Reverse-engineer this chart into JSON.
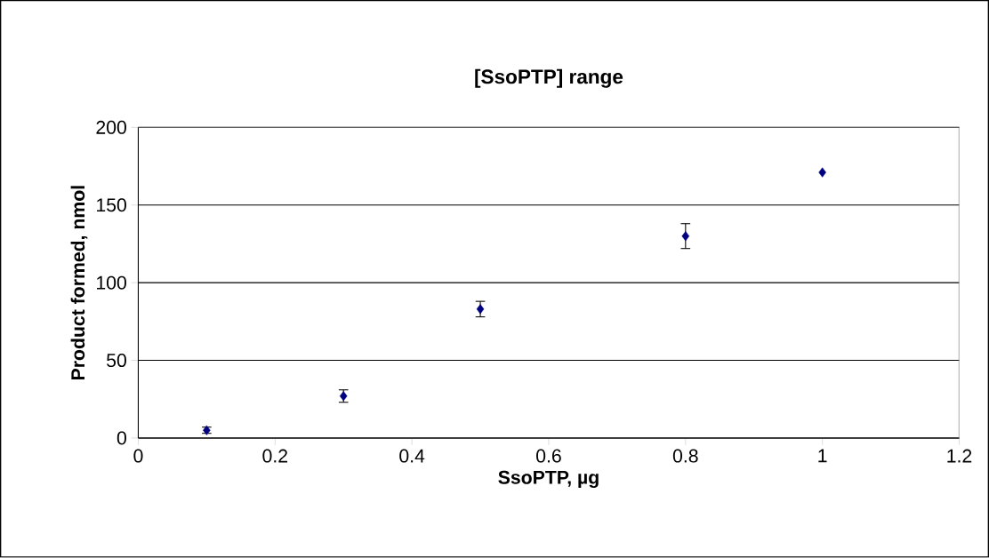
{
  "chart_data": {
    "type": "scatter",
    "title": "[SsoPTP] range",
    "xlabel": "SsoPTP, µg",
    "ylabel": "Product formed, nmol",
    "x": [
      0.1,
      0.3,
      0.5,
      0.8,
      1.0
    ],
    "values": [
      5,
      27,
      83,
      130,
      171
    ],
    "errors": [
      2,
      4,
      5,
      8,
      null
    ],
    "color": "#000080",
    "marker": "diamond",
    "xlim": [
      0,
      1.2
    ],
    "xticks": [
      0,
      0.2,
      0.4,
      0.6,
      0.8,
      1,
      1.2
    ],
    "ylim": [
      0,
      200
    ],
    "yticks": [
      0,
      50,
      100,
      150,
      200
    ],
    "grid": "y"
  }
}
